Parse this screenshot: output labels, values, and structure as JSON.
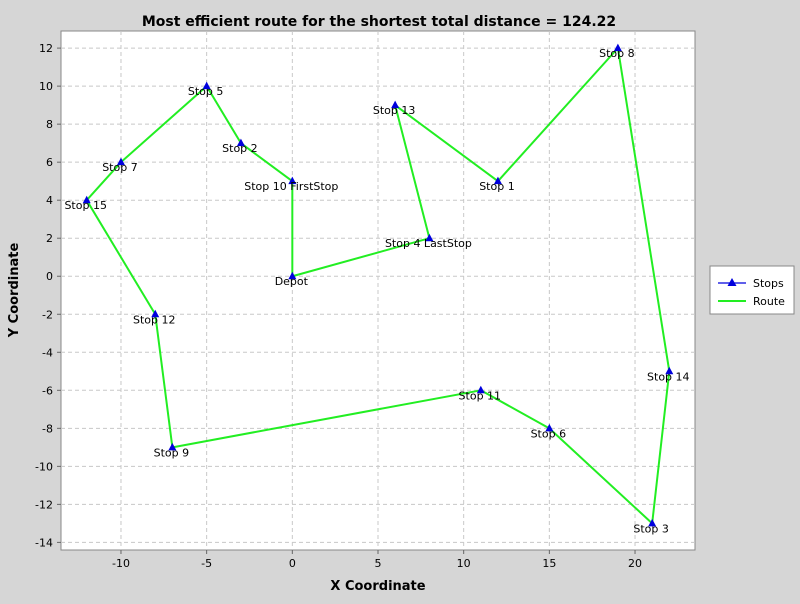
{
  "chart_data": {
    "type": "scatter",
    "title": "Most efficient route for the shortest total distance = 124.22",
    "xlabel": "X Coordinate",
    "ylabel": "Y Coordinate",
    "xlim": [
      -13.5,
      23.5
    ],
    "ylim": [
      -14.4,
      12.9
    ],
    "x_ticks": [
      -10,
      -5,
      0,
      5,
      10,
      15,
      20
    ],
    "y_ticks": [
      -14,
      -12,
      -10,
      -8,
      -6,
      -4,
      -2,
      0,
      2,
      4,
      6,
      8,
      10,
      12
    ],
    "grid": true,
    "legend_position": "right",
    "legend": [
      {
        "name": "Stops",
        "color": "#0000dd",
        "marker": "triangle"
      },
      {
        "name": "Route",
        "color": "#22ee22",
        "marker": "line"
      }
    ],
    "points": [
      {
        "label": "Depot",
        "x": 0,
        "y": 0
      },
      {
        "label": "Stop 1",
        "x": 12,
        "y": 5
      },
      {
        "label": "Stop 2",
        "x": -3,
        "y": 7
      },
      {
        "label": "Stop 3",
        "x": 21,
        "y": -13
      },
      {
        "label": "Stop 4 LastStop",
        "x": 8,
        "y": 2
      },
      {
        "label": "Stop 5",
        "x": -5,
        "y": 10
      },
      {
        "label": "Stop 6",
        "x": 15,
        "y": -8
      },
      {
        "label": "Stop 7",
        "x": -10,
        "y": 6
      },
      {
        "label": "Stop 8",
        "x": 19,
        "y": 12
      },
      {
        "label": "Stop 9",
        "x": -7,
        "y": -9
      },
      {
        "label": "Stop 10 FirstStop",
        "x": 0,
        "y": 5
      },
      {
        "label": "Stop 11",
        "x": 11,
        "y": -6
      },
      {
        "label": "Stop 12",
        "x": -8,
        "y": -2
      },
      {
        "label": "Stop 13",
        "x": 6,
        "y": 9
      },
      {
        "label": "Stop 14",
        "x": 22,
        "y": -5
      },
      {
        "label": "Stop 15",
        "x": -12,
        "y": 4
      }
    ],
    "route": [
      [
        0,
        0
      ],
      [
        0,
        5
      ],
      [
        -3,
        7
      ],
      [
        -5,
        10
      ],
      [
        -10,
        6
      ],
      [
        -12,
        4
      ],
      [
        -8,
        -2
      ],
      [
        -7,
        -9
      ],
      [
        11,
        -6
      ],
      [
        15,
        -8
      ],
      [
        21,
        -13
      ],
      [
        22,
        -5
      ],
      [
        19,
        12
      ],
      [
        12,
        5
      ],
      [
        6,
        9
      ],
      [
        8,
        2
      ],
      [
        0,
        0
      ]
    ]
  }
}
